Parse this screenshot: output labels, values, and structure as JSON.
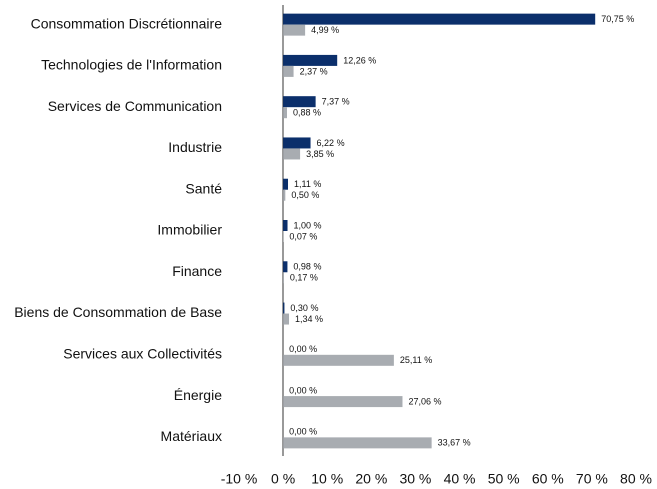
{
  "chart_data": {
    "type": "hbar",
    "categories": [
      "Consommation Discrétionnaire",
      "Technologies de l'Information",
      "Services de Communication",
      "Industrie",
      "Santé",
      "Immobilier",
      "Finance",
      "Biens de Consommation de Base",
      "Services aux Collectivités",
      "Énergie",
      "Matériaux"
    ],
    "series": [
      {
        "color": "#0b2f6b",
        "values": [
          70.75,
          12.26,
          7.37,
          6.22,
          1.11,
          1.0,
          0.98,
          0.3,
          0,
          0,
          0
        ],
        "value_labels": [
          "70,75 %",
          "12,26 %",
          "7,37 %",
          "6,22 %",
          "1,11 %",
          "1,00 %",
          "0,98 %",
          "0,30 %",
          "0,00 %",
          "0,00 %",
          "0,00 %"
        ]
      },
      {
        "color": "#a8acb1",
        "values": [
          4.99,
          2.37,
          0.88,
          3.85,
          0.5,
          0.07,
          0.17,
          1.34,
          25.11,
          27.06,
          33.67
        ],
        "value_labels": [
          "4,99 %",
          "2,37 %",
          "0,88 %",
          "3,85 %",
          "0,50 %",
          "0,07 %",
          "0,17 %",
          "1,34 %",
          "25,11 %",
          "27,06 %",
          "33,67 %"
        ]
      }
    ],
    "xlim": [
      -10,
      80
    ],
    "xticks": [
      {
        "value": -10,
        "label": "-10 %"
      },
      {
        "value": 0,
        "label": "0 %"
      },
      {
        "value": 10,
        "label": "10 %"
      },
      {
        "value": 20,
        "label": "20 %"
      },
      {
        "value": 30,
        "label": "30 %"
      },
      {
        "value": 40,
        "label": "40 %"
      },
      {
        "value": 50,
        "label": "50 %"
      },
      {
        "value": 60,
        "label": "60 %"
      },
      {
        "value": 70,
        "label": "70 %"
      },
      {
        "value": 80,
        "label": "80 %"
      }
    ]
  }
}
